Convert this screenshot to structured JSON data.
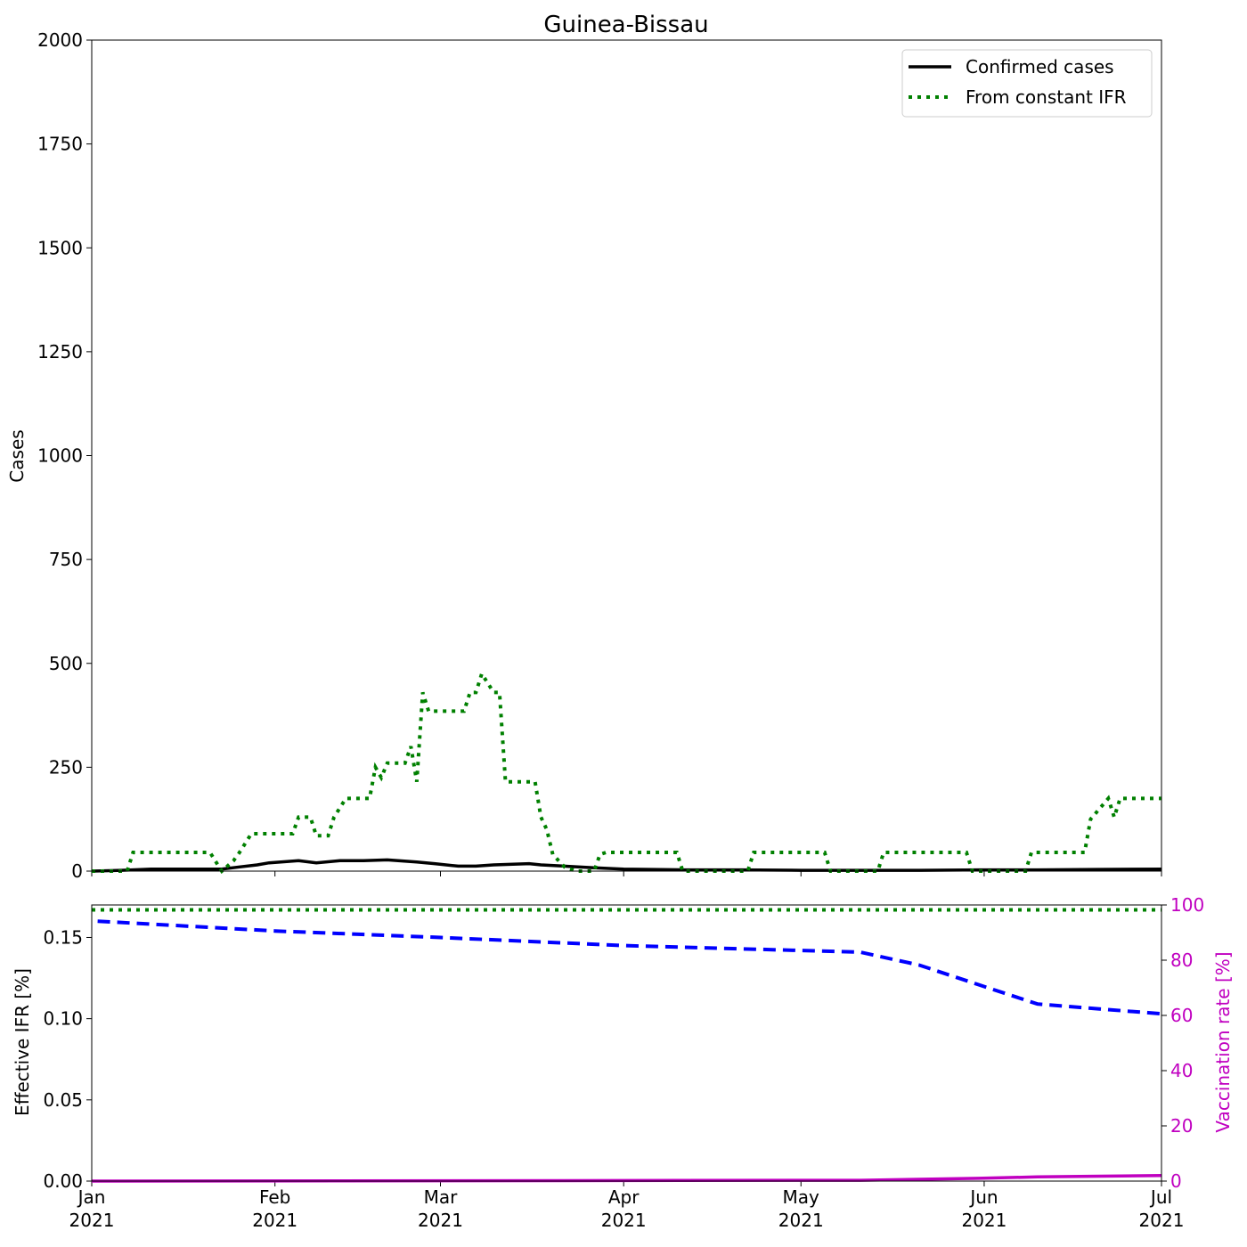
{
  "chart_data": [
    {
      "type": "line",
      "title": "Guinea-Bissau",
      "ylabel": "Cases",
      "xlim": [
        0,
        181
      ],
      "xticks": [
        0,
        31,
        59,
        90,
        120,
        151,
        181
      ],
      "ylim": [
        0,
        2000
      ],
      "yticks": [
        0,
        250,
        500,
        750,
        1000,
        1250,
        1500,
        1750,
        2000
      ],
      "legend": "upper right",
      "series": [
        {
          "name": "Confirmed cases",
          "color": "#000000",
          "style": "solid",
          "x": [
            0,
            5,
            10,
            15,
            22,
            25,
            28,
            30,
            35,
            38,
            42,
            46,
            50,
            55,
            58,
            62,
            65,
            68,
            74,
            76,
            80,
            85,
            90,
            100,
            110,
            120,
            130,
            140,
            150,
            160,
            170,
            181
          ],
          "values": [
            0,
            2,
            5,
            5,
            5,
            10,
            15,
            20,
            25,
            20,
            25,
            25,
            27,
            22,
            18,
            12,
            12,
            15,
            18,
            15,
            12,
            8,
            5,
            3,
            3,
            2,
            2,
            2,
            3,
            3,
            4,
            5
          ]
        },
        {
          "name": "From constant IFR",
          "color": "#008000",
          "style": "dotted",
          "x": [
            0,
            6,
            7,
            20,
            22,
            24,
            25,
            27,
            34,
            35,
            37,
            38,
            40,
            41,
            43,
            47,
            48,
            49,
            50,
            53,
            54,
            55,
            56,
            57,
            63,
            64,
            65,
            66,
            68,
            69,
            70,
            75,
            76,
            77,
            78,
            80,
            82,
            85,
            86,
            87,
            99,
            100,
            111,
            112,
            124,
            125,
            133,
            134,
            148,
            149,
            158,
            159,
            168,
            169,
            172,
            173,
            174,
            181
          ],
          "values": [
            0,
            0,
            45,
            45,
            0,
            25,
            45,
            90,
            90,
            130,
            130,
            85,
            85,
            130,
            175,
            175,
            250,
            225,
            260,
            260,
            300,
            215,
            430,
            385,
            385,
            430,
            430,
            475,
            430,
            430,
            215,
            215,
            130,
            100,
            40,
            10,
            0,
            0,
            40,
            45,
            45,
            0,
            0,
            45,
            45,
            0,
            0,
            45,
            45,
            0,
            0,
            45,
            45,
            125,
            175,
            130,
            175,
            175
          ]
        }
      ]
    },
    {
      "type": "line",
      "ylabel": "Effective IFR [%]",
      "y2label": "Vaccination rate [%]",
      "xlim": [
        0,
        181
      ],
      "xticks": [
        {
          "value": 0,
          "label": "Jan\n2021"
        },
        {
          "value": 31,
          "label": "Feb\n2021"
        },
        {
          "value": 59,
          "label": "Mar\n2021"
        },
        {
          "value": 90,
          "label": "Apr\n2021"
        },
        {
          "value": 120,
          "label": "May\n2021"
        },
        {
          "value": 151,
          "label": "Jun\n2021"
        },
        {
          "value": 181,
          "label": "Jul\n2021"
        }
      ],
      "ylim": [
        0,
        0.17
      ],
      "yticks": [
        {
          "value": 0,
          "label": "0.00"
        },
        {
          "value": 0.05,
          "label": "0.05"
        },
        {
          "value": 0.1,
          "label": "0.10"
        },
        {
          "value": 0.15,
          "label": "0.15"
        }
      ],
      "y2lim": [
        0,
        100
      ],
      "y2ticks": [
        0,
        20,
        40,
        60,
        80,
        100
      ],
      "y2color": "#c000c0",
      "series": [
        {
          "color": "#008000",
          "style": "dotted",
          "x": [
            0,
            181
          ],
          "values": [
            0.167,
            0.167
          ]
        },
        {
          "color": "#0000ff",
          "style": "dashed",
          "x": [
            1,
            31,
            59,
            90,
            120,
            130,
            140,
            150,
            160,
            181
          ],
          "values": [
            0.16,
            0.154,
            0.15,
            0.145,
            0.142,
            0.141,
            0.133,
            0.121,
            0.109,
            0.103
          ]
        },
        {
          "color": "#c000c0",
          "style": "solid",
          "axis": "y2",
          "x": [
            0,
            130,
            150,
            160,
            181
          ],
          "values": [
            0,
            0.3,
            1,
            1.5,
            2
          ]
        }
      ]
    }
  ]
}
